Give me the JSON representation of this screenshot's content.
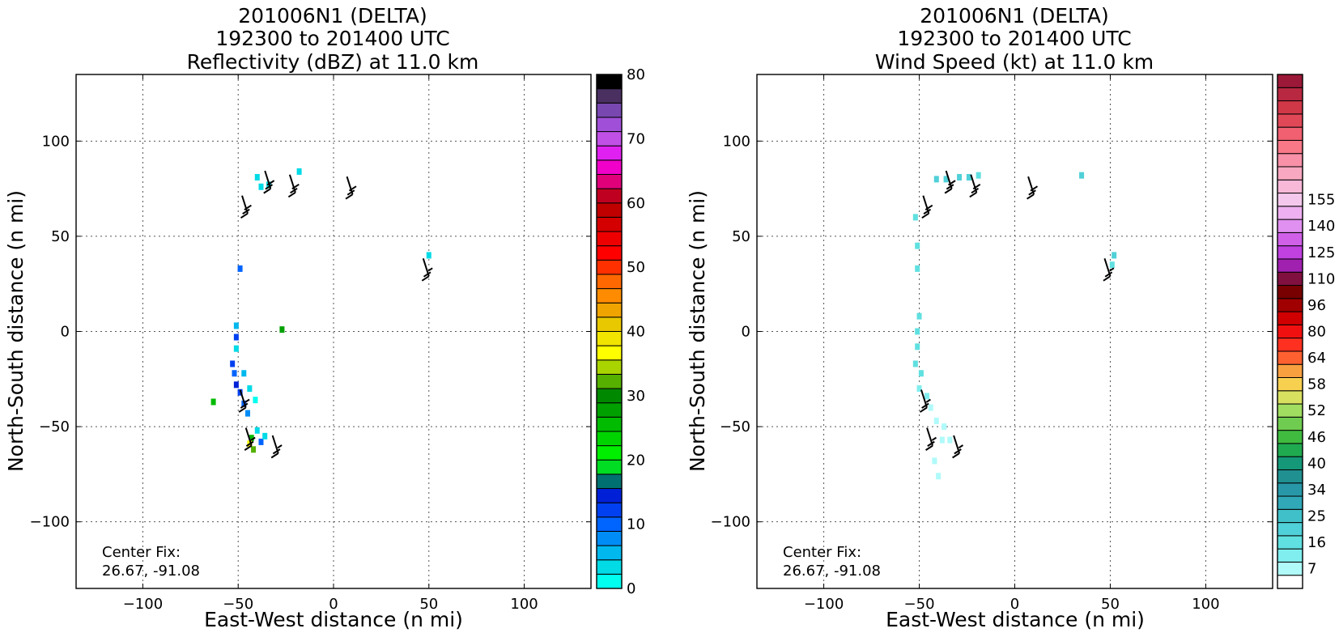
{
  "chart_data": [
    {
      "type": "heatmap",
      "title_lines": [
        "201006N1 (DELTA)",
        "192300 to 201400 UTC",
        "Reflectivity (dBZ) at 11.0 km"
      ],
      "xlabel": "East-West distance (n mi)",
      "ylabel": "North-South distance (n mi)",
      "xlim": [
        -135,
        135
      ],
      "ylim": [
        -135,
        135
      ],
      "x_ticks": [
        -100,
        -50,
        0,
        50,
        100
      ],
      "y_ticks": [
        -100,
        -50,
        0,
        50,
        100
      ],
      "x_tick_labels": [
        "−100",
        "−50",
        "0",
        "50",
        "100"
      ],
      "y_tick_labels": [
        "−100",
        "−50",
        "0",
        "50",
        "100"
      ],
      "grid": true,
      "annotation_lines": [
        "Center Fix:",
        "26.67, -91.08"
      ],
      "colorbar": {
        "min": 0,
        "max": 80,
        "tick_labels": [
          "0",
          "10",
          "20",
          "30",
          "40",
          "50",
          "60",
          "70",
          "80"
        ],
        "colors": [
          "#00ffee",
          "#00dbe6",
          "#00b8ee",
          "#008cf6",
          "#0064ff",
          "#0040f0",
          "#0020d8",
          "#007070",
          "#00dd22",
          "#00ee00",
          "#00d400",
          "#00bb00",
          "#00a000",
          "#008800",
          "#55b000",
          "#aad400",
          "#ffff00",
          "#f0e400",
          "#e8c800",
          "#f0a400",
          "#ff8c00",
          "#ff6800",
          "#ff3000",
          "#ff0000",
          "#ee0000",
          "#d40000",
          "#c00000",
          "#c00020",
          "#e0007a",
          "#f000c8",
          "#e020f0",
          "#c050e6",
          "#a050d8",
          "#7848b0",
          "#4a3060",
          "#000000"
        ]
      },
      "cells": [
        {
          "x": -51,
          "y": 3,
          "v": 5
        },
        {
          "x": -51,
          "y": -3,
          "v": 12
        },
        {
          "x": -51,
          "y": -9,
          "v": 4
        },
        {
          "x": -53,
          "y": -17,
          "v": 12
        },
        {
          "x": -52,
          "y": -22,
          "v": 10
        },
        {
          "x": -51,
          "y": -28,
          "v": 14
        },
        {
          "x": -49,
          "y": -32,
          "v": 13
        },
        {
          "x": -47,
          "y": -38,
          "v": 11
        },
        {
          "x": -45,
          "y": -43,
          "v": 7
        },
        {
          "x": -47,
          "y": -22,
          "v": 6
        },
        {
          "x": -44,
          "y": -30,
          "v": 4
        },
        {
          "x": -41,
          "y": -36,
          "v": 2
        },
        {
          "x": -40,
          "y": -52,
          "v": 3
        },
        {
          "x": -38,
          "y": -58,
          "v": 10
        },
        {
          "x": -36,
          "y": -55,
          "v": 4
        },
        {
          "x": -43,
          "y": -56,
          "v": 25
        },
        {
          "x": -44,
          "y": -59,
          "v": 37
        },
        {
          "x": -42,
          "y": -62,
          "v": 32
        },
        {
          "x": -27,
          "y": 1,
          "v": 28
        },
        {
          "x": -63,
          "y": -37,
          "v": 26
        },
        {
          "x": -40,
          "y": 81,
          "v": 3
        },
        {
          "x": -38,
          "y": 76,
          "v": 4
        },
        {
          "x": -34,
          "y": 77,
          "v": 3
        },
        {
          "x": -18,
          "y": 84,
          "v": 4
        },
        {
          "x": -49,
          "y": 33,
          "v": 10
        },
        {
          "x": 50,
          "y": 40,
          "v": 3
        }
      ],
      "barbs": [
        {
          "x": -46,
          "y": -40,
          "speed_kt": 25
        },
        {
          "x": -43,
          "y": -60,
          "speed_kt": 25
        },
        {
          "x": -29,
          "y": -64,
          "speed_kt": 25
        },
        {
          "x": -45,
          "y": 62,
          "speed_kt": 30
        },
        {
          "x": -33,
          "y": 75,
          "speed_kt": 30
        },
        {
          "x": -20,
          "y": 73,
          "speed_kt": 30
        },
        {
          "x": 10,
          "y": 72,
          "speed_kt": 30
        },
        {
          "x": 50,
          "y": 29,
          "speed_kt": 25
        }
      ]
    },
    {
      "type": "heatmap",
      "title_lines": [
        "201006N1 (DELTA)",
        "192300 to 201400 UTC",
        "Wind Speed (kt) at 11.0 km"
      ],
      "xlabel": "East-West distance (n mi)",
      "ylabel": "North-South distance (n mi)",
      "xlim": [
        -135,
        135
      ],
      "ylim": [
        -135,
        135
      ],
      "x_ticks": [
        -100,
        -50,
        0,
        50,
        100
      ],
      "y_ticks": [
        -100,
        -50,
        0,
        50,
        100
      ],
      "x_tick_labels": [
        "−100",
        "−50",
        "0",
        "50",
        "100"
      ],
      "y_tick_labels": [
        "−100",
        "−50",
        "0",
        "50",
        "100"
      ],
      "grid": true,
      "annotation_lines": [
        "Center Fix:",
        "26.67, -91.08"
      ],
      "colorbar": {
        "min": 7,
        "max": 161,
        "tick_values": [
          7,
          16,
          25,
          34,
          40,
          46,
          52,
          58,
          64,
          80,
          96,
          110,
          125,
          140,
          155
        ],
        "tick_labels": [
          "7",
          "16",
          "25",
          "34",
          "40",
          "46",
          "52",
          "58",
          "64",
          "80",
          "96",
          "110",
          "125",
          "140",
          "155"
        ],
        "colors": [
          "#ffffff",
          "#b0fafa",
          "#80eeee",
          "#60e0e0",
          "#50d0d8",
          "#40c0c8",
          "#30a8b8",
          "#2898a8",
          "#209090",
          "#149878",
          "#20aa50",
          "#40bb40",
          "#70cc50",
          "#a0dd60",
          "#d8e060",
          "#f8d050",
          "#f8a040",
          "#ff6030",
          "#ff3020",
          "#f01010",
          "#d00000",
          "#a00000",
          "#780000",
          "#801040",
          "#a020b0",
          "#c040e0",
          "#d060e8",
          "#e090f0",
          "#eeb0f0",
          "#f4c8ec",
          "#f8b8d8",
          "#f8a8c0",
          "#f890a8",
          "#f87888",
          "#f06070",
          "#e04858",
          "#d03848",
          "#b82840",
          "#9c1838"
        ]
      },
      "cells": [
        {
          "x": -52,
          "y": 60,
          "v": 17
        },
        {
          "x": -51,
          "y": 45,
          "v": 17
        },
        {
          "x": -51,
          "y": 33,
          "v": 17
        },
        {
          "x": -50,
          "y": 8,
          "v": 18
        },
        {
          "x": -51,
          "y": 0,
          "v": 20
        },
        {
          "x": -51,
          "y": -8,
          "v": 18
        },
        {
          "x": -52,
          "y": -17,
          "v": 19
        },
        {
          "x": -49,
          "y": -22,
          "v": 18
        },
        {
          "x": -50,
          "y": -30,
          "v": 12
        },
        {
          "x": -46,
          "y": -34,
          "v": 13
        },
        {
          "x": -44,
          "y": -40,
          "v": 10
        },
        {
          "x": -41,
          "y": -47,
          "v": 9
        },
        {
          "x": -37,
          "y": -50,
          "v": 9
        },
        {
          "x": -38,
          "y": -57,
          "v": 10
        },
        {
          "x": -34,
          "y": -57,
          "v": 8
        },
        {
          "x": -42,
          "y": -68,
          "v": 10
        },
        {
          "x": -40,
          "y": -76,
          "v": 9
        },
        {
          "x": -41,
          "y": 80,
          "v": 24
        },
        {
          "x": -36,
          "y": 80,
          "v": 23
        },
        {
          "x": -29,
          "y": 81,
          "v": 22
        },
        {
          "x": -24,
          "y": 81,
          "v": 22
        },
        {
          "x": -19,
          "y": 82,
          "v": 20
        },
        {
          "x": 35,
          "y": 82,
          "v": 23
        },
        {
          "x": 52,
          "y": 40,
          "v": 24
        },
        {
          "x": 51,
          "y": 35,
          "v": 19
        }
      ],
      "barbs": [
        {
          "x": -46,
          "y": -40,
          "speed_kt": 25
        },
        {
          "x": -43,
          "y": -60,
          "speed_kt": 25
        },
        {
          "x": -29,
          "y": -64,
          "speed_kt": 25
        },
        {
          "x": -45,
          "y": 62,
          "speed_kt": 30
        },
        {
          "x": -33,
          "y": 75,
          "speed_kt": 30
        },
        {
          "x": -20,
          "y": 73,
          "speed_kt": 30
        },
        {
          "x": 10,
          "y": 72,
          "speed_kt": 30
        },
        {
          "x": 50,
          "y": 29,
          "speed_kt": 25
        }
      ]
    }
  ]
}
